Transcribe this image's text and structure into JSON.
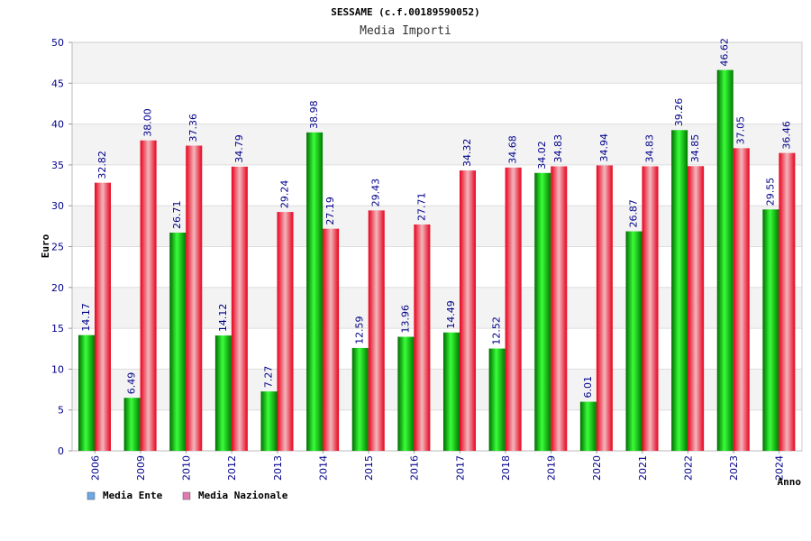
{
  "header": {
    "title": "SESSAME (c.f.00189590052)",
    "subtitle": "Media Importi"
  },
  "chart_data": {
    "type": "bar",
    "title": "Media Importi",
    "xlabel": "Anno",
    "ylabel": "Euro",
    "ylim": [
      0,
      50
    ],
    "yticks": [
      0,
      5,
      10,
      15,
      20,
      25,
      30,
      35,
      40,
      45,
      50
    ],
    "grid": true,
    "categories": [
      "2006",
      "2009",
      "2010",
      "2012",
      "2013",
      "2014",
      "2015",
      "2016",
      "2017",
      "2018",
      "2019",
      "2020",
      "2021",
      "2022",
      "2023",
      "2024"
    ],
    "series": [
      {
        "name": "Media Ente",
        "color": "#00c000",
        "values": [
          14.17,
          6.49,
          26.71,
          14.12,
          7.27,
          38.98,
          12.59,
          13.96,
          14.49,
          12.52,
          34.02,
          6.01,
          26.87,
          39.26,
          46.62,
          29.55
        ]
      },
      {
        "name": "Media Nazionale",
        "color": "#e8192c",
        "values": [
          32.82,
          38.0,
          37.36,
          34.79,
          29.24,
          27.19,
          29.43,
          27.71,
          34.32,
          34.68,
          34.83,
          34.94,
          34.83,
          34.85,
          37.05,
          36.46
        ]
      }
    ],
    "legend": [
      {
        "label": "Media Ente",
        "color": "#6aa8e8"
      },
      {
        "label": "Media Nazionale",
        "color": "#e07ab0"
      }
    ]
  }
}
